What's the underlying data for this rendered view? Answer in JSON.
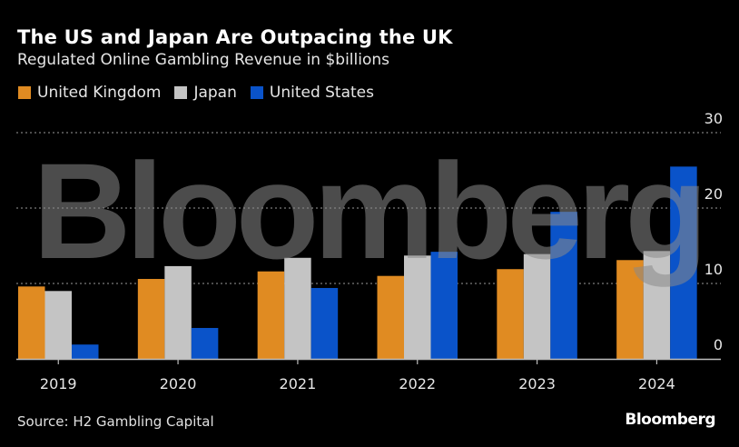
{
  "header": {
    "title": "The US and Japan Are Outpacing the UK",
    "subtitle": "Regulated Online Gambling Revenue in $billions"
  },
  "footer": {
    "source": "Source: H2 Gambling Capital",
    "brand": "Bloomberg"
  },
  "watermark": "Bloomberg",
  "chart_data": {
    "type": "bar",
    "title": "The US and Japan Are Outpacing the UK",
    "subtitle": "Regulated Online Gambling Revenue in $billions",
    "xlabel": "",
    "ylabel": "",
    "categories": [
      "2019",
      "2020",
      "2021",
      "2022",
      "2023",
      "2024"
    ],
    "series": [
      {
        "name": "United Kingdom",
        "color": "#E08B22",
        "values": [
          9.6,
          10.6,
          11.6,
          11.0,
          11.9,
          13.1
        ]
      },
      {
        "name": "Japan",
        "color": "#C4C4C4",
        "values": [
          9.0,
          12.3,
          13.4,
          13.7,
          13.9,
          14.3
        ]
      },
      {
        "name": "United States",
        "color": "#0A53C9",
        "values": [
          1.9,
          4.1,
          9.4,
          14.2,
          19.5,
          25.5
        ]
      }
    ],
    "ylim": [
      0,
      30
    ],
    "yticks": [
      0,
      10,
      20,
      30
    ],
    "y_axis_position": "right",
    "grid": true,
    "legend_position": "top-left",
    "source": "Source: H2 Gambling Capital"
  }
}
